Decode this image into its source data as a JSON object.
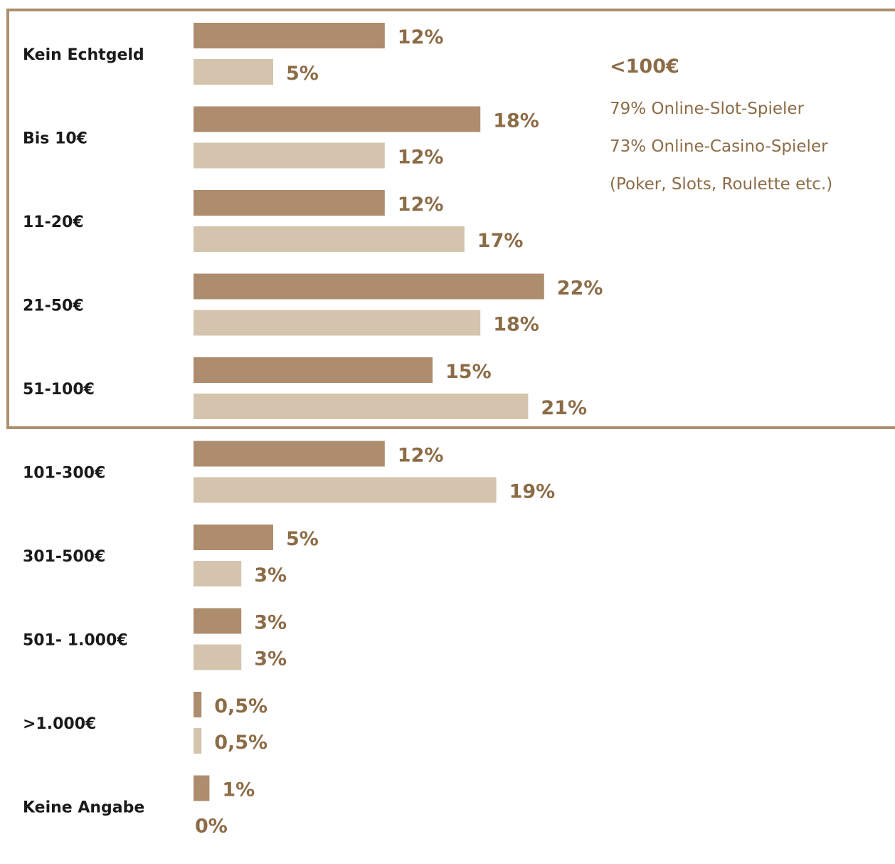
{
  "colors": {
    "slot": "#ad8d6e",
    "casino": "#d4c4ae",
    "value_text": "#8c6c47",
    "category_text": "#1a1a1a",
    "box_border": "#ad8f6e"
  },
  "annotation": {
    "title": "<100€",
    "lines": [
      "79% Online-Slot-Spieler",
      "73% Online-Casino-Spieler",
      "(Poker, Slots, Roulette etc.)"
    ]
  },
  "chart_data": {
    "type": "bar",
    "orientation": "horizontal",
    "categories": [
      "Kein Echtgeld",
      "Bis 10€",
      "11-20€",
      "21-50€",
      "51-100€",
      "101-300€",
      "301-500€",
      "501- 1.000€",
      ">1.000€",
      "Keine Angabe"
    ],
    "series": [
      {
        "values": [
          12,
          18,
          12,
          22,
          15,
          12,
          5,
          3,
          0.5,
          1
        ],
        "labels": [
          "12%",
          "18%",
          "12%",
          "22%",
          "15%",
          "12%",
          "5%",
          "3%",
          "0,5%",
          "1%"
        ]
      },
      {
        "values": [
          5,
          12,
          17,
          18,
          21,
          19,
          3,
          3,
          0.5,
          0
        ],
        "labels": [
          "5%",
          "12%",
          "17%",
          "18%",
          "21%",
          "19%",
          "3%",
          "3%",
          "0,5%",
          "0%"
        ]
      }
    ],
    "grid": false,
    "legend": "none",
    "highlight": "first five categories boxed"
  }
}
